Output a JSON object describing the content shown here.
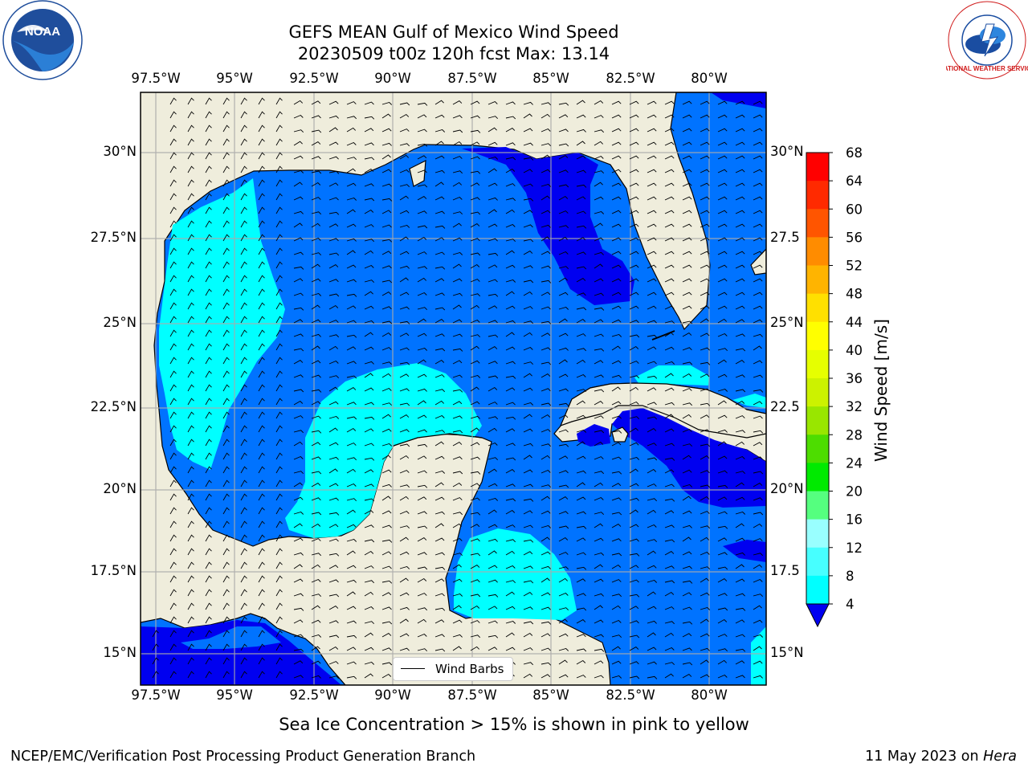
{
  "header": {
    "title_line1": "GEFS MEAN Gulf of Mexico Wind Speed",
    "title_line2": "20230509 t00z 120h fcst   Max: 13.14"
  },
  "map": {
    "lon_ticks_top": [
      "97.5°W",
      "95°W",
      "92.5°W",
      "90°W",
      "87.5°W",
      "85°W",
      "82.5°W",
      "80°W"
    ],
    "lon_ticks_bottom": [
      "97.5°W",
      "95°W",
      "92.5°W",
      "90°W",
      "87.5°W",
      "85°W",
      "82.5°W",
      "80°W"
    ],
    "lat_ticks_left": [
      "30°N",
      "27.5°N",
      "25°N",
      "22.5°N",
      "20°N",
      "17.5°N",
      "15°N"
    ],
    "lat_ticks_right": [
      "30°N",
      "27.5",
      "25°N",
      "22.5",
      "20°N",
      "17.5",
      "15°N"
    ],
    "legend_label": "Wind Barbs",
    "land_color": "#efeddc",
    "ocean_color": "#0073ff"
  },
  "colorbar": {
    "title": "Wind Speed [m/s]",
    "labels": [
      "68",
      "64",
      "60",
      "56",
      "52",
      "48",
      "44",
      "40",
      "36",
      "32",
      "28",
      "24",
      "20",
      "16",
      "12",
      "8",
      "4"
    ],
    "colors": [
      "#0000f0",
      "#0073ff",
      "#00ffff",
      "#47ffff",
      "#99ffff",
      "#55ff7f",
      "#00ea00",
      "#4ddd00",
      "#99e600",
      "#ccf200",
      "#e6ff00",
      "#ffff00",
      "#ffe000",
      "#ffb400",
      "#ff8c00",
      "#ff5500",
      "#ff2a00",
      "#ff0000"
    ]
  },
  "footer": {
    "subtitle": "Sea Ice Concentration > 15% is shown in pink to yellow",
    "left": "NCEP/EMC/Verification Post Processing Product Generation Branch",
    "date": "11 May 2023 on ",
    "machine": "Hera"
  },
  "logos": {
    "noaa_text": "NOAA",
    "nws_ring": "NATIONAL WEATHER SERVICE"
  }
}
